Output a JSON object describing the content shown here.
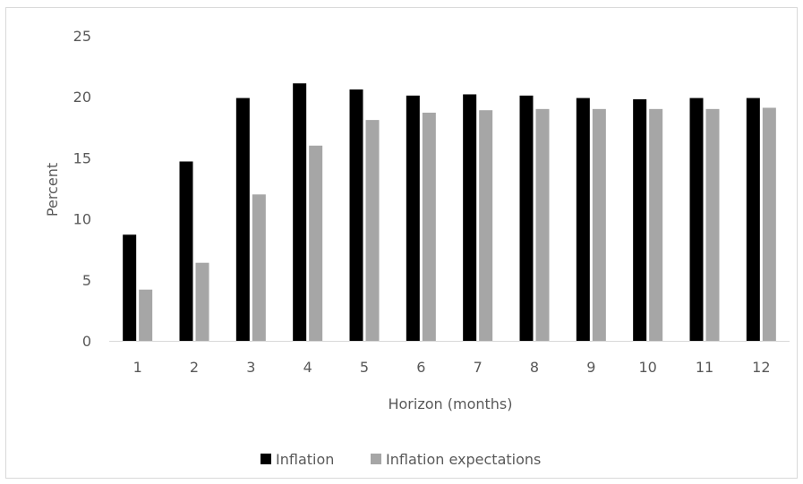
{
  "chart_data": {
    "type": "bar",
    "title": "",
    "xlabel": "Horizon (months)",
    "ylabel": "Percent",
    "ylim": [
      0,
      25
    ],
    "yticks": [
      0,
      5,
      10,
      15,
      20,
      25
    ],
    "categories": [
      "1",
      "2",
      "3",
      "4",
      "5",
      "6",
      "7",
      "8",
      "9",
      "10",
      "11",
      "12"
    ],
    "series": [
      {
        "name": "Inflation",
        "color": "#000000",
        "values": [
          8.7,
          14.7,
          19.9,
          21.1,
          20.6,
          20.1,
          20.2,
          20.1,
          19.9,
          19.8,
          19.9,
          19.9
        ]
      },
      {
        "name": "Inflation expectations",
        "color": "#a6a6a6",
        "values": [
          4.2,
          6.4,
          12.0,
          16.0,
          18.1,
          18.7,
          18.9,
          19.0,
          19.0,
          19.0,
          19.0,
          19.1
        ]
      }
    ],
    "grid": false,
    "legend_position": "bottom"
  }
}
